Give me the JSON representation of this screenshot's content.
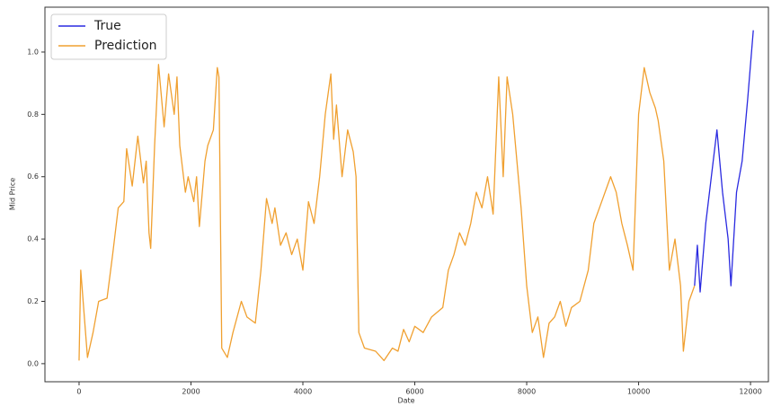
{
  "chart_data": {
    "type": "line",
    "x_label": "Date",
    "y_label": "Mid Price",
    "x": [
      0,
      30,
      150,
      250,
      350,
      500,
      600,
      700,
      800,
      850,
      950,
      1050,
      1150,
      1200,
      1250,
      1280,
      1350,
      1420,
      1520,
      1600,
      1700,
      1750,
      1800,
      1900,
      1950,
      2050,
      2100,
      2150,
      2250,
      2300,
      2400,
      2470,
      2500,
      2550,
      2650,
      2750,
      2900,
      3000,
      3150,
      3250,
      3350,
      3450,
      3500,
      3600,
      3700,
      3800,
      3900,
      4000,
      4100,
      4200,
      4300,
      4400,
      4500,
      4550,
      4600,
      4700,
      4800,
      4900,
      4950,
      5000,
      5100,
      5300,
      5450,
      5600,
      5700,
      5800,
      5900,
      6000,
      6150,
      6300,
      6500,
      6600,
      6700,
      6800,
      6900,
      7000,
      7100,
      7200,
      7300,
      7400,
      7500,
      7580,
      7650,
      7750,
      7900,
      8000,
      8100,
      8200,
      8300,
      8400,
      8500,
      8600,
      8700,
      8800,
      8950,
      9100,
      9200,
      9300,
      9500,
      9600,
      9700,
      9800,
      9900,
      10000,
      10100,
      10200,
      10300,
      10350,
      10450,
      10550,
      10650,
      10750,
      10800,
      10900,
      11000,
      11050,
      11100,
      11200,
      11300,
      11400,
      11500,
      11600,
      11650,
      11750,
      11850,
      11950,
      12050
    ],
    "series": [
      {
        "name": "True",
        "color": "#2a2ae0",
        "values": [
          null,
          null,
          null,
          null,
          null,
          null,
          null,
          null,
          null,
          null,
          null,
          null,
          null,
          null,
          null,
          null,
          null,
          null,
          null,
          null,
          null,
          null,
          null,
          null,
          null,
          null,
          null,
          null,
          null,
          null,
          null,
          null,
          null,
          null,
          null,
          null,
          null,
          null,
          null,
          null,
          null,
          null,
          null,
          null,
          null,
          null,
          null,
          null,
          null,
          null,
          null,
          null,
          null,
          null,
          null,
          null,
          null,
          null,
          null,
          null,
          null,
          null,
          null,
          null,
          null,
          null,
          null,
          null,
          null,
          null,
          null,
          null,
          null,
          null,
          null,
          null,
          null,
          null,
          null,
          null,
          null,
          null,
          null,
          null,
          null,
          null,
          null,
          null,
          null,
          null,
          null,
          null,
          null,
          null,
          null,
          null,
          null,
          null,
          null,
          null,
          null,
          null,
          null,
          null,
          null,
          null,
          null,
          null,
          null,
          null,
          null,
          null,
          null,
          null,
          0.25,
          0.38,
          0.23,
          0.45,
          0.6,
          0.75,
          0.55,
          0.4,
          0.25,
          0.55,
          0.65,
          0.85,
          1.07
        ]
      },
      {
        "name": "Prediction",
        "color": "#f0a030",
        "values": [
          0.01,
          0.3,
          0.02,
          0.1,
          0.2,
          0.21,
          0.35,
          0.5,
          0.52,
          0.69,
          0.57,
          0.73,
          0.58,
          0.65,
          0.42,
          0.37,
          0.7,
          0.96,
          0.76,
          0.93,
          0.8,
          0.92,
          0.7,
          0.55,
          0.6,
          0.52,
          0.6,
          0.44,
          0.65,
          0.7,
          0.75,
          0.95,
          0.92,
          0.05,
          0.02,
          0.1,
          0.2,
          0.15,
          0.13,
          0.3,
          0.53,
          0.45,
          0.5,
          0.38,
          0.42,
          0.35,
          0.4,
          0.3,
          0.52,
          0.45,
          0.6,
          0.8,
          0.93,
          0.72,
          0.83,
          0.6,
          0.75,
          0.68,
          0.6,
          0.1,
          0.05,
          0.04,
          0.01,
          0.05,
          0.04,
          0.11,
          0.07,
          0.12,
          0.1,
          0.15,
          0.18,
          0.3,
          0.35,
          0.42,
          0.38,
          0.45,
          0.55,
          0.5,
          0.6,
          0.48,
          0.92,
          0.6,
          0.92,
          0.8,
          0.5,
          0.25,
          0.1,
          0.15,
          0.02,
          0.13,
          0.15,
          0.2,
          0.12,
          0.18,
          0.2,
          0.3,
          0.45,
          0.5,
          0.6,
          0.55,
          0.45,
          0.38,
          0.3,
          0.8,
          0.95,
          0.87,
          0.82,
          0.78,
          0.65,
          0.3,
          0.4,
          0.25,
          0.04,
          0.2,
          0.25,
          null,
          null,
          null,
          null,
          null,
          null,
          null,
          null,
          null,
          null,
          null,
          null
        ]
      }
    ],
    "xlim": [
      -610,
      12320
    ],
    "ylim": [
      -0.058,
      1.144
    ],
    "xticks": [
      0,
      2000,
      4000,
      6000,
      8000,
      10000,
      12000
    ],
    "yticks": [
      {
        "value": 0,
        "label": "0.0"
      },
      0.2,
      0.4,
      0.6,
      0.8,
      {
        "value": 1,
        "label": "1.0"
      }
    ],
    "legend": "upper left"
  }
}
